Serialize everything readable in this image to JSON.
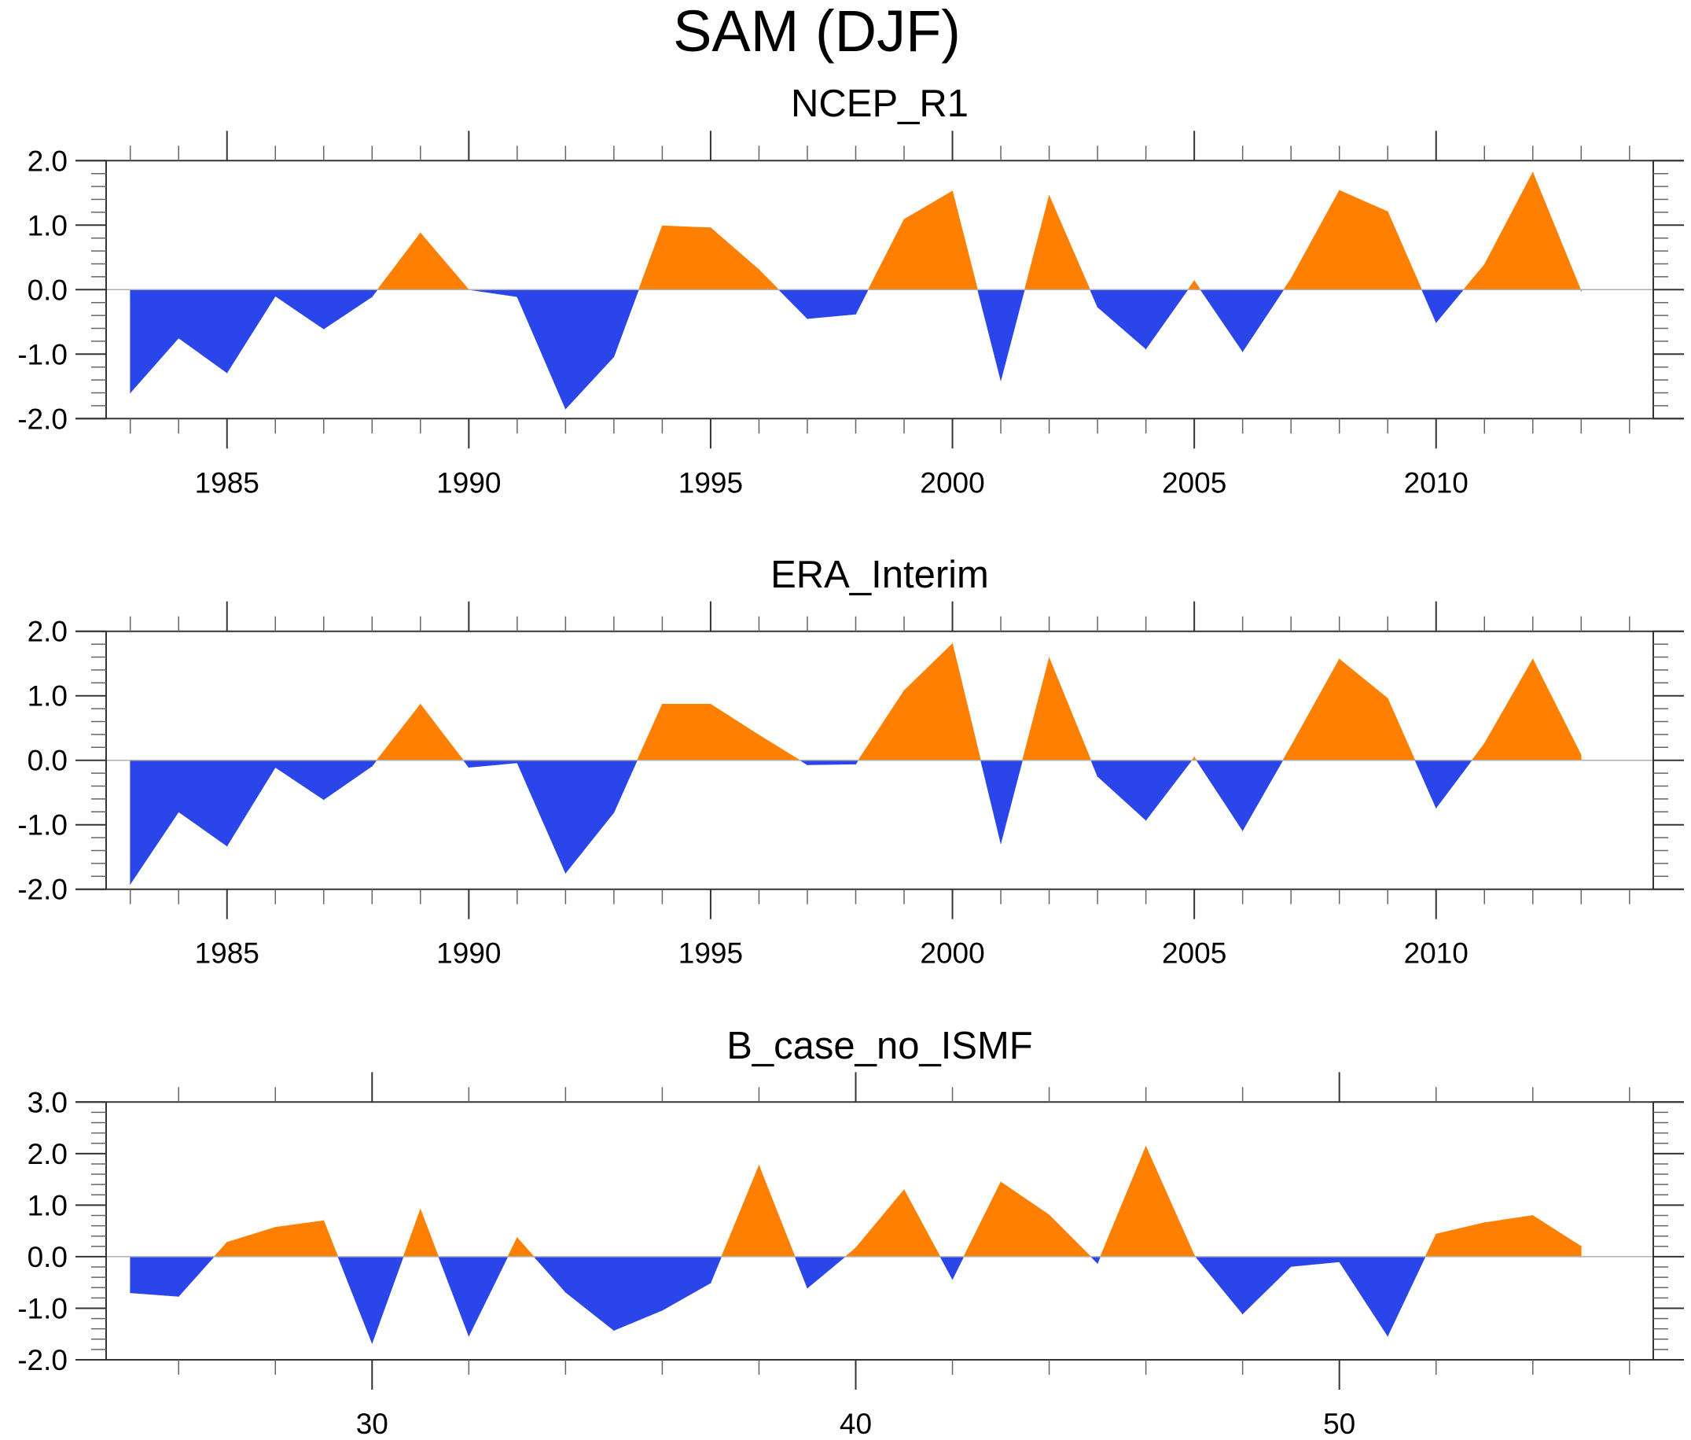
{
  "chart_data": {
    "type": "area",
    "title": "SAM (DJF)",
    "panels": [
      {
        "title": "NCEP_R1",
        "xlabel": "",
        "ylabel": "",
        "grid": false,
        "xlim": [
          1982.5,
          2014.5
        ],
        "ylim": [
          -2.0,
          2.0
        ],
        "yticks": [
          "-2.0",
          "-1.0",
          "0.0",
          "1.0",
          "2.0"
        ],
        "ytick_values": [
          -2,
          -1,
          0,
          1,
          2
        ],
        "xticks": [
          "1985",
          "1990",
          "1995",
          "2000",
          "2005",
          "2010"
        ],
        "xtick_values": [
          1985,
          1990,
          1995,
          2000,
          2005,
          2010
        ],
        "x_minor_step": 1,
        "x_minor_range": [
          1983,
          2014
        ],
        "y_minor_step": 0.2,
        "positive_color": "#ff8000",
        "negative_color": "#2a45ea",
        "x": [
          1983,
          1984,
          1985,
          1986,
          1987,
          1988,
          1989,
          1990,
          1991,
          1992,
          1993,
          1994,
          1995,
          1996,
          1997,
          1998,
          1999,
          2000,
          2001,
          2002,
          2003,
          2004,
          2005,
          2006,
          2007,
          2008,
          2009,
          2010,
          2011,
          2012,
          2013
        ],
        "values": [
          -1.6,
          -0.75,
          -1.29,
          -0.1,
          -0.61,
          -0.11,
          0.88,
          0.0,
          -0.11,
          -1.85,
          -1.04,
          0.99,
          0.96,
          0.31,
          -0.45,
          -0.38,
          1.09,
          1.53,
          -1.41,
          1.46,
          -0.27,
          -0.92,
          0.14,
          -0.96,
          0.17,
          1.54,
          1.21,
          -0.51,
          0.39,
          1.82,
          -0.02
        ]
      },
      {
        "title": "ERA_Interim",
        "xlabel": "",
        "ylabel": "",
        "grid": false,
        "xlim": [
          1982.5,
          2014.5
        ],
        "ylim": [
          -2.0,
          2.0
        ],
        "yticks": [
          "-2.0",
          "-1.0",
          "0.0",
          "1.0",
          "2.0"
        ],
        "ytick_values": [
          -2,
          -1,
          0,
          1,
          2
        ],
        "xticks": [
          "1985",
          "1990",
          "1995",
          "2000",
          "2005",
          "2010"
        ],
        "xtick_values": [
          1985,
          1990,
          1995,
          2000,
          2005,
          2010
        ],
        "x_minor_step": 1,
        "x_minor_range": [
          1983,
          2014
        ],
        "y_minor_step": 0.2,
        "positive_color": "#ff8000",
        "negative_color": "#2a45ea",
        "x": [
          1983,
          1984,
          1985,
          1986,
          1987,
          1988,
          1989,
          1990,
          1991,
          1992,
          1993,
          1994,
          1995,
          1996,
          1997,
          1998,
          1999,
          2000,
          2001,
          2002,
          2003,
          2004,
          2005,
          2006,
          2007,
          2008,
          2009,
          2010,
          2011,
          2012,
          2013
        ],
        "values": [
          -1.92,
          -0.8,
          -1.33,
          -0.11,
          -0.61,
          -0.09,
          0.87,
          -0.11,
          -0.04,
          -1.75,
          -0.81,
          0.87,
          0.87,
          0.39,
          -0.07,
          -0.06,
          1.08,
          1.81,
          -1.29,
          1.59,
          -0.25,
          -0.93,
          0.05,
          -1.09,
          0.22,
          1.57,
          0.96,
          -0.74,
          0.26,
          1.57,
          0.08
        ]
      },
      {
        "title": "B_case_no_ISMF",
        "xlabel": "",
        "ylabel": "",
        "grid": false,
        "xlim": [
          24.5,
          56.5
        ],
        "ylim": [
          -2.0,
          3.0
        ],
        "yticks": [
          "-2.0",
          "-1.0",
          "0.0",
          "1.0",
          "2.0",
          "3.0"
        ],
        "ytick_values": [
          -2,
          -1,
          0,
          1,
          2,
          3
        ],
        "xticks": [
          "30",
          "40",
          "50"
        ],
        "xtick_values": [
          30,
          40,
          50
        ],
        "x_minor_step": 2,
        "x_minor_range": [
          26,
          56
        ],
        "y_minor_step": 0.2,
        "positive_color": "#ff8000",
        "negative_color": "#2a45ea",
        "x": [
          25,
          26,
          27,
          28,
          29,
          30,
          31,
          32,
          33,
          34,
          35,
          36,
          37,
          38,
          39,
          40,
          41,
          42,
          43,
          44,
          45,
          46,
          47,
          48,
          49,
          50,
          51,
          52,
          53,
          54,
          55
        ],
        "values": [
          -0.7,
          -0.77,
          0.28,
          0.57,
          0.7,
          -1.68,
          0.92,
          -1.54,
          0.37,
          -0.69,
          -1.43,
          -1.04,
          -0.51,
          1.77,
          -0.61,
          0.17,
          1.3,
          -0.44,
          1.45,
          0.81,
          -0.13,
          2.14,
          0.03,
          -1.11,
          -0.19,
          -0.1,
          -1.54,
          0.44,
          0.66,
          0.8,
          0.2
        ]
      }
    ]
  }
}
